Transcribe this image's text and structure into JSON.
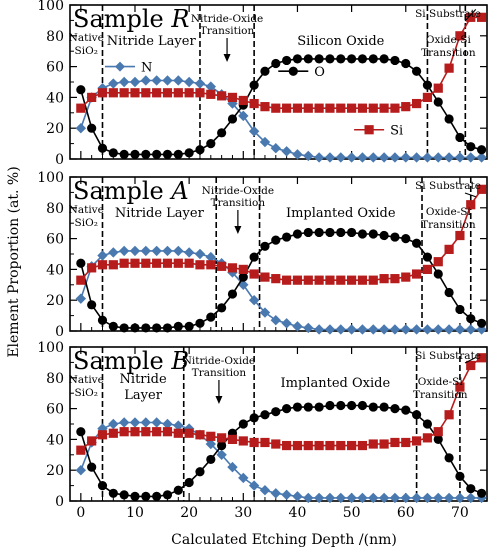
{
  "figure": {
    "xlabel": "Calculated Etching Depth /(nm)",
    "ylabel": "Element Proportion (at. %)"
  },
  "chart_data": [
    {
      "type": "line",
      "title": "Sample R",
      "title_prefix": "Sample ",
      "title_italic": "R",
      "xlim": [
        -2,
        75
      ],
      "ylim": [
        0,
        100
      ],
      "xticks": [
        0,
        10,
        20,
        30,
        40,
        50,
        60,
        70
      ],
      "yticks": [
        0,
        20,
        40,
        60,
        80,
        100
      ],
      "x": [
        0,
        2,
        4,
        6,
        8,
        10,
        12,
        14,
        16,
        18,
        20,
        22,
        24,
        26,
        28,
        30,
        32,
        34,
        36,
        38,
        40,
        42,
        44,
        46,
        48,
        50,
        52,
        54,
        56,
        58,
        60,
        62,
        64,
        66,
        68,
        70,
        72,
        74
      ],
      "series": [
        {
          "name": "N",
          "color": "#4a79b0",
          "marker": "diamond",
          "values": [
            20,
            40,
            46,
            49,
            50,
            50,
            51,
            51,
            51,
            51,
            50,
            49,
            47,
            42,
            36,
            28,
            18,
            11,
            7,
            5,
            3,
            2,
            1,
            1,
            1,
            1,
            1,
            1,
            1,
            1,
            1,
            1,
            1,
            1,
            1,
            1,
            1,
            1
          ]
        },
        {
          "name": "O",
          "color": "#000000",
          "marker": "circle",
          "values": [
            45,
            20,
            7,
            4,
            3,
            3,
            3,
            3,
            3,
            3,
            4,
            6,
            10,
            17,
            26,
            35,
            48,
            57,
            62,
            64,
            65,
            65,
            65,
            65,
            65,
            65,
            65,
            65,
            65,
            64,
            62,
            57,
            48,
            37,
            26,
            14,
            8,
            6
          ]
        },
        {
          "name": "Si",
          "color": "#b71c1c",
          "marker": "square",
          "values": [
            33,
            40,
            43,
            43,
            43,
            43,
            43,
            43,
            43,
            43,
            43,
            43,
            42,
            41,
            40,
            38,
            36,
            34,
            33,
            33,
            33,
            33,
            33,
            33,
            33,
            33,
            33,
            33,
            33,
            33,
            34,
            36,
            40,
            46,
            59,
            80,
            92,
            92
          ]
        }
      ],
      "vlines": [
        4,
        22,
        32,
        64,
        71
      ],
      "annotations": {
        "native": [
          "Native",
          "SiO₂"
        ],
        "nitride": [
          "Nitride Layer"
        ],
        "nox_transition": [
          "Nitride-Oxide",
          "Transition"
        ],
        "oxide": [
          "Silicon Oxide"
        ],
        "osi_transition": [
          "Oxide-Si",
          "Transition"
        ],
        "substrate": "Si Substrate"
      },
      "legend": [
        "N",
        "O",
        "Si"
      ]
    },
    {
      "type": "line",
      "title": "Sample A",
      "title_prefix": "Sample ",
      "title_italic": "A",
      "xlim": [
        -2,
        75
      ],
      "ylim": [
        0,
        100
      ],
      "xticks": [
        0,
        10,
        20,
        30,
        40,
        50,
        60,
        70
      ],
      "yticks": [
        0,
        20,
        40,
        60,
        80,
        100
      ],
      "x": [
        0,
        2,
        4,
        6,
        8,
        10,
        12,
        14,
        16,
        18,
        20,
        22,
        24,
        26,
        28,
        30,
        32,
        34,
        36,
        38,
        40,
        42,
        44,
        46,
        48,
        50,
        52,
        54,
        56,
        58,
        60,
        62,
        64,
        66,
        68,
        70,
        72,
        74
      ],
      "series": [
        {
          "name": "N",
          "color": "#4a79b0",
          "marker": "diamond",
          "values": [
            21,
            42,
            49,
            51,
            52,
            52,
            52,
            52,
            52,
            52,
            51,
            50,
            48,
            44,
            38,
            30,
            20,
            12,
            7,
            5,
            3,
            2,
            1,
            1,
            1,
            1,
            1,
            1,
            1,
            1,
            1,
            1,
            1,
            1,
            1,
            1,
            1,
            1
          ]
        },
        {
          "name": "O",
          "color": "#000000",
          "marker": "circle",
          "values": [
            44,
            17,
            7,
            3,
            2,
            2,
            2,
            2,
            2,
            3,
            3,
            5,
            9,
            15,
            24,
            35,
            48,
            55,
            59,
            61,
            63,
            64,
            64,
            64,
            64,
            64,
            63,
            63,
            62,
            61,
            60,
            57,
            48,
            37,
            25,
            14,
            8,
            5
          ]
        },
        {
          "name": "Si",
          "color": "#b71c1c",
          "marker": "square",
          "values": [
            33,
            41,
            43,
            43,
            44,
            44,
            44,
            44,
            44,
            44,
            44,
            43,
            43,
            42,
            41,
            40,
            37,
            35,
            34,
            33,
            33,
            33,
            33,
            33,
            33,
            33,
            33,
            33,
            34,
            34,
            35,
            37,
            40,
            45,
            53,
            62,
            82,
            92
          ]
        }
      ],
      "vlines": [
        4,
        25,
        33,
        63,
        72
      ],
      "annotations": {
        "native": [
          "Native",
          "SiO₂"
        ],
        "nitride": [
          "Nitride Layer"
        ],
        "nox_transition": [
          "Nitride-Oxide",
          "Transition"
        ],
        "oxide": [
          "Implanted Oxide"
        ],
        "osi_transition": [
          "Oxide-Si",
          "Transition"
        ],
        "substrate": "Si Substrate"
      },
      "legend": []
    },
    {
      "type": "line",
      "title": "Sample B",
      "title_prefix": "Sample ",
      "title_italic": "B",
      "xlim": [
        -2,
        75
      ],
      "ylim": [
        0,
        100
      ],
      "xticks": [
        0,
        10,
        20,
        30,
        40,
        50,
        60,
        70
      ],
      "yticks": [
        0,
        20,
        40,
        60,
        80,
        100
      ],
      "x": [
        0,
        2,
        4,
        6,
        8,
        10,
        12,
        14,
        16,
        18,
        20,
        22,
        24,
        26,
        28,
        30,
        32,
        34,
        36,
        38,
        40,
        42,
        44,
        46,
        48,
        50,
        52,
        54,
        56,
        58,
        60,
        62,
        64,
        66,
        68,
        70,
        72,
        74
      ],
      "series": [
        {
          "name": "N",
          "color": "#4a79b0",
          "marker": "diamond",
          "values": [
            20,
            38,
            47,
            50,
            51,
            51,
            51,
            51,
            50,
            49,
            47,
            43,
            37,
            30,
            22,
            15,
            10,
            7,
            5,
            4,
            3,
            2,
            2,
            2,
            2,
            2,
            2,
            2,
            2,
            2,
            2,
            2,
            2,
            2,
            2,
            2,
            2,
            2
          ]
        },
        {
          "name": "O",
          "color": "#000000",
          "marker": "circle",
          "values": [
            45,
            22,
            10,
            5,
            4,
            3,
            3,
            3,
            4,
            7,
            12,
            19,
            27,
            36,
            44,
            50,
            54,
            56,
            58,
            60,
            61,
            61,
            61,
            62,
            62,
            62,
            62,
            61,
            61,
            60,
            59,
            56,
            50,
            40,
            28,
            16,
            8,
            5
          ]
        },
        {
          "name": "Si",
          "color": "#b71c1c",
          "marker": "square",
          "values": [
            33,
            39,
            43,
            44,
            45,
            45,
            45,
            45,
            45,
            44,
            44,
            43,
            42,
            41,
            40,
            39,
            38,
            38,
            37,
            36,
            36,
            36,
            36,
            36,
            36,
            36,
            36,
            37,
            37,
            38,
            38,
            39,
            41,
            45,
            56,
            74,
            88,
            93
          ]
        }
      ],
      "vlines": [
        4,
        19,
        32,
        62,
        70
      ],
      "annotations": {
        "native": [
          "Native",
          "SiO₂"
        ],
        "nitride": [
          "Nitride",
          "Layer"
        ],
        "nox_transition": [
          "Nitride-Oxide",
          "Transition"
        ],
        "oxide": [
          "Implanted Oxide"
        ],
        "osi_transition": [
          "Oxide-Si",
          "Transition"
        ],
        "substrate": "Si Substrate"
      },
      "legend": []
    }
  ]
}
